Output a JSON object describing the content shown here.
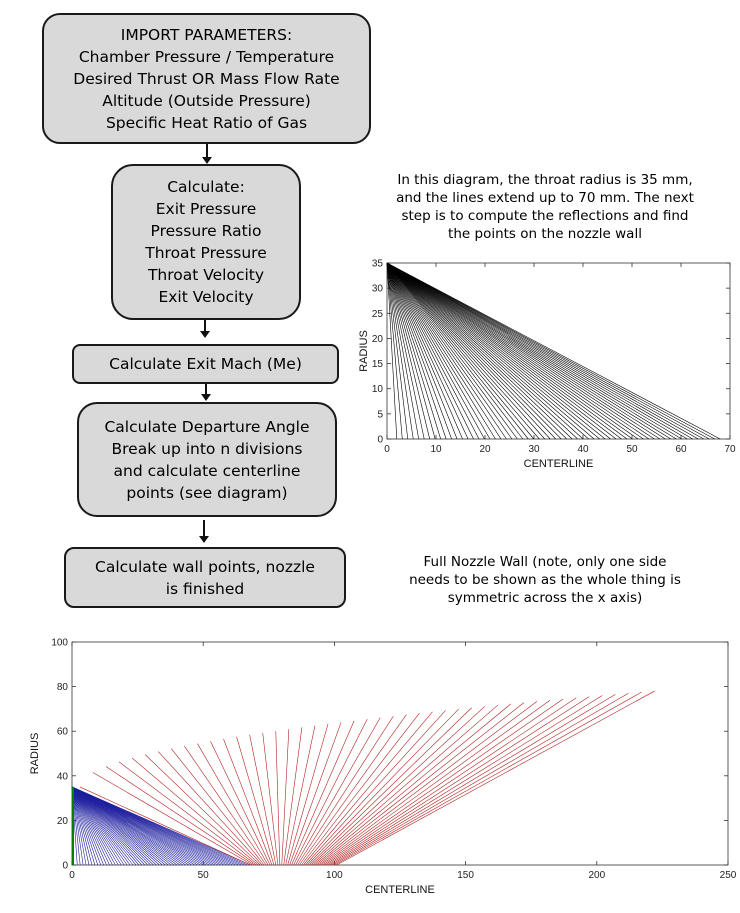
{
  "flowchart": {
    "box1": [
      "IMPORT PARAMETERS:",
      "Chamber Pressure / Temperature",
      "Desired Thrust OR Mass Flow Rate",
      "Altitude (Outside Pressure)",
      "Specific Heat Ratio of Gas"
    ],
    "box2": [
      "Calculate:",
      "Exit Pressure",
      "Pressure Ratio",
      "Throat Pressure",
      "Throat Velocity",
      "Exit Velocity"
    ],
    "box3": [
      "Calculate Exit Mach (Me)"
    ],
    "box4": [
      "Calculate Departure Angle",
      "Break up into n divisions",
      "and calculate centerline",
      "points (see diagram)"
    ],
    "box5": [
      "Calculate wall points, nozzle",
      "is finished"
    ]
  },
  "notes": {
    "top": [
      "In this diagram, the throat radius is 35 mm,",
      "and the lines extend up to 70 mm. The next",
      "step is to compute the reflections and find",
      "the points on the nozzle wall"
    ],
    "bottom": [
      "Full Nozzle Wall (note, only one side",
      "needs to be shown as the whole thing is",
      "symmetric across the x axis)"
    ]
  },
  "chart_data": [
    {
      "type": "line",
      "title": "",
      "xlabel": "CENTERLINE",
      "ylabel": "RADIUS",
      "xlim": [
        0,
        70
      ],
      "ylim": [
        0,
        35
      ],
      "xticks": [
        0,
        10,
        20,
        30,
        40,
        50,
        60,
        70
      ],
      "yticks": [
        0,
        5,
        10,
        15,
        20,
        25,
        30,
        35
      ],
      "series": [
        {
          "color": "#000000",
          "description_lines": 60,
          "start": [
            0,
            35
          ],
          "end_x_range": [
            2,
            68
          ],
          "end_y": 0
        }
      ]
    },
    {
      "type": "line",
      "title": "",
      "xlabel": "CENTERLINE",
      "ylabel": "RADIUS",
      "xlim": [
        0,
        250
      ],
      "ylim": [
        0,
        100
      ],
      "xticks": [
        0,
        50,
        100,
        150,
        200,
        250
      ],
      "yticks": [
        0,
        20,
        40,
        60,
        80,
        100
      ],
      "series": [
        {
          "color": "#1f1f9f",
          "description_lines": 60,
          "start": [
            0,
            35
          ],
          "end_x_range": [
            2,
            68
          ],
          "end_y": 0
        },
        {
          "color": "#b22222",
          "description_lines": 45,
          "wall_x": [
            1,
            220
          ],
          "wall_y": [
            35,
            78
          ],
          "reflection_end_x_range": [
            2,
            222
          ]
        },
        {
          "color": "#008000",
          "description_lines": 1,
          "x": [
            0,
            0
          ],
          "y": [
            0,
            35
          ]
        }
      ]
    }
  ]
}
